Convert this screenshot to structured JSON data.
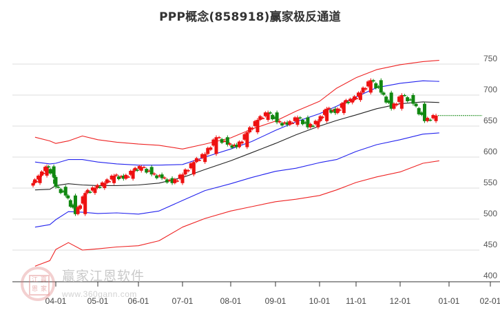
{
  "title": "PPP概念(858918)赢家极反通道",
  "watermark": {
    "text": "赢家江恩软件",
    "url": "www.360gann.com",
    "logo_chars": [
      "江",
      "赢",
      "恩",
      "家"
    ]
  },
  "colors": {
    "up_candle": "#ee1111",
    "down_candle": "#118811",
    "outer_band": "#ee2222",
    "inner_band": "#2222ee",
    "mid_line": "#222222",
    "last_price_line": "#118811",
    "grid": "#dddddd"
  },
  "chart_data": {
    "type": "candlestick",
    "title": "PPP概念(858918)赢家极反通道",
    "xlabel": "",
    "ylabel": "",
    "ylim": [
      400,
      770
    ],
    "y_ticks": [
      400,
      450,
      500,
      550,
      600,
      650,
      700,
      750
    ],
    "x_ticks": [
      "04-01",
      "05-01",
      "06-01",
      "07-01",
      "08-01",
      "09-01",
      "10-01",
      "11-01",
      "12-01",
      "01-01",
      "02-01"
    ],
    "grid": true,
    "last_price": 667,
    "series": [
      {
        "name": "outer_upper_band (red)",
        "x": [
          "03-10",
          "03-25",
          "04-01",
          "04-10",
          "04-20",
          "05-01",
          "05-15",
          "06-01",
          "06-15",
          "07-01",
          "07-15",
          "08-01",
          "08-15",
          "09-01",
          "09-15",
          "10-01",
          "10-15",
          "11-01",
          "11-15",
          "12-01",
          "12-15",
          "12-25"
        ],
        "values": [
          632,
          626,
          622,
          626,
          634,
          628,
          624,
          621,
          619,
          613,
          621,
          631,
          645,
          658,
          674,
          690,
          711,
          728,
          741,
          749,
          754,
          756
        ]
      },
      {
        "name": "inner_upper_band (blue)",
        "x": [
          "03-10",
          "03-25",
          "04-01",
          "04-10",
          "04-20",
          "05-01",
          "05-15",
          "06-01",
          "06-15",
          "07-01",
          "07-15",
          "08-01",
          "08-15",
          "09-01",
          "09-15",
          "10-01",
          "10-15",
          "11-01",
          "11-15",
          "12-01",
          "12-15",
          "12-25"
        ],
        "values": [
          592,
          589,
          590,
          596,
          596,
          592,
          589,
          587,
          587,
          588,
          600,
          613,
          625,
          643,
          657,
          670,
          682,
          697,
          712,
          719,
          723,
          722
        ]
      },
      {
        "name": "mid_line (black)",
        "x": [
          "03-10",
          "03-25",
          "04-01",
          "04-10",
          "04-20",
          "05-01",
          "05-15",
          "06-01",
          "06-15",
          "07-01",
          "07-15",
          "08-01",
          "08-15",
          "09-01",
          "09-15",
          "10-01",
          "10-15",
          "11-01",
          "11-15",
          "12-01",
          "12-15",
          "12-25"
        ],
        "values": [
          547,
          548,
          554,
          557,
          555,
          554,
          554,
          555,
          558,
          567,
          580,
          594,
          607,
          622,
          636,
          650,
          659,
          668,
          678,
          686,
          689,
          688
        ]
      },
      {
        "name": "inner_lower_band (blue)",
        "x": [
          "03-10",
          "03-25",
          "04-01",
          "04-10",
          "04-20",
          "05-01",
          "05-15",
          "06-01",
          "06-15",
          "07-01",
          "07-15",
          "08-01",
          "08-15",
          "09-01",
          "09-15",
          "10-01",
          "10-15",
          "11-01",
          "11-15",
          "12-01",
          "12-15",
          "12-25"
        ],
        "values": [
          487,
          491,
          499,
          512,
          511,
          509,
          510,
          508,
          513,
          530,
          546,
          557,
          567,
          577,
          582,
          591,
          596,
          609,
          620,
          628,
          637,
          639
        ]
      },
      {
        "name": "outer_lower_band (red)",
        "x": [
          "03-10",
          "03-25",
          "04-01",
          "04-10",
          "04-20",
          "05-01",
          "05-15",
          "06-01",
          "06-15",
          "07-01",
          "07-15",
          "08-01",
          "08-15",
          "09-01",
          "09-15",
          "10-01",
          "10-15",
          "11-01",
          "11-15",
          "12-01",
          "12-15",
          "12-25"
        ],
        "values": [
          424,
          433,
          451,
          462,
          450,
          452,
          455,
          457,
          465,
          487,
          501,
          513,
          520,
          528,
          532,
          538,
          547,
          559,
          568,
          576,
          590,
          594
        ]
      },
      {
        "name": "price_close (candles)",
        "x": [
          "03-08",
          "03-15",
          "03-22",
          "03-29",
          "04-01",
          "04-08",
          "04-15",
          "04-22",
          "04-29",
          "05-06",
          "05-13",
          "05-20",
          "05-27",
          "06-03",
          "06-10",
          "06-17",
          "06-24",
          "07-01",
          "07-08",
          "07-15",
          "07-22",
          "07-29",
          "08-05",
          "08-12",
          "08-19",
          "08-26",
          "09-02",
          "09-09",
          "09-16",
          "09-23",
          "09-30",
          "10-07",
          "10-14",
          "10-21",
          "10-28",
          "11-04",
          "11-11",
          "11-18",
          "11-25",
          "12-02",
          "12-09",
          "12-16",
          "12-23"
        ],
        "values": [
          558,
          570,
          585,
          568,
          552,
          538,
          508,
          542,
          550,
          558,
          570,
          565,
          578,
          584,
          572,
          566,
          558,
          572,
          592,
          605,
          632,
          620,
          616,
          640,
          660,
          672,
          656,
          652,
          664,
          648,
          658,
          678,
          671,
          688,
          692,
          704,
          724,
          704,
          678,
          700,
          686,
          658,
          667
        ]
      }
    ]
  }
}
